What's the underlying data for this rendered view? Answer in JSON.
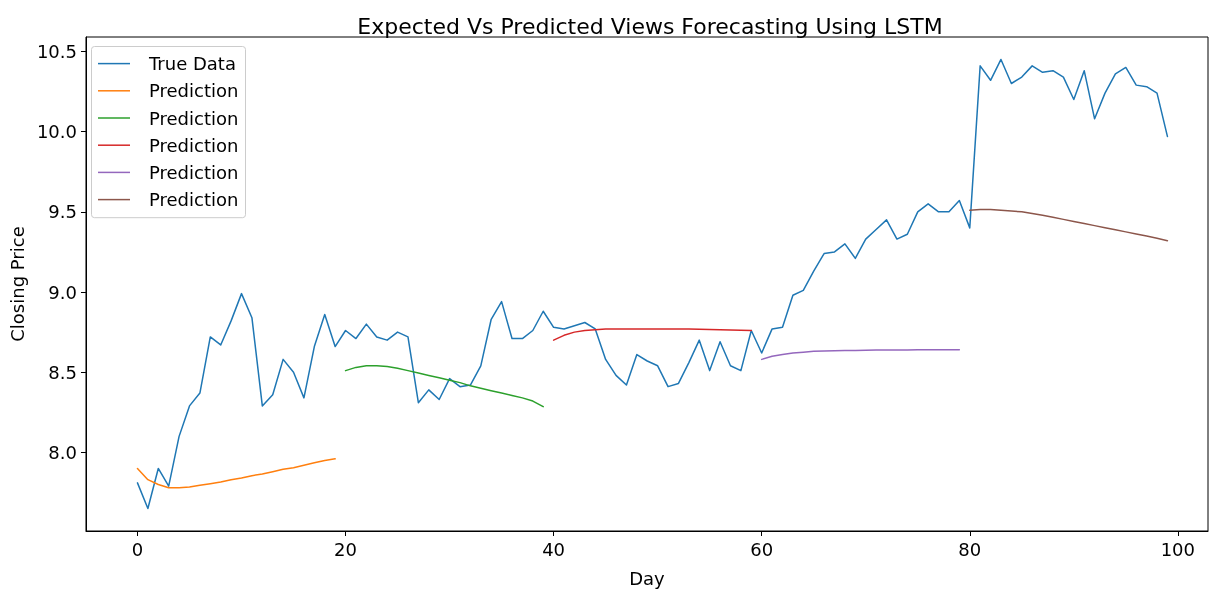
{
  "chart_data": {
    "type": "line",
    "title": "Expected Vs Predicted Views Forecasting Using LSTM",
    "xlabel": "Day",
    "ylabel": "Closing Price",
    "xlim": [
      -4.95,
      102.9
    ],
    "ylim": [
      7.51,
      10.59
    ],
    "xticks": [
      0,
      20,
      40,
      60,
      80,
      100
    ],
    "yticks": [
      {
        "value": 8,
        "label": "8.0"
      },
      {
        "value": 8.5,
        "label": "8.5"
      },
      {
        "value": 9,
        "label": "9.0"
      },
      {
        "value": 9.5,
        "label": "9.5"
      },
      {
        "value": 10,
        "label": "10.0"
      },
      {
        "value": 10.5,
        "label": "10.5"
      }
    ],
    "grid": false,
    "legend": "top left",
    "marker": "none",
    "line_style": "solid",
    "series": [
      {
        "name": "True Data",
        "color": "#1f77b4",
        "x": [
          0,
          1,
          2,
          3,
          4,
          5,
          6,
          7,
          8,
          9,
          10,
          11,
          12,
          13,
          14,
          15,
          16,
          17,
          18,
          19,
          20,
          21,
          22,
          23,
          24,
          25,
          26,
          27,
          28,
          29,
          30,
          31,
          32,
          33,
          34,
          35,
          36,
          37,
          38,
          39,
          40,
          41,
          42,
          43,
          44,
          45,
          46,
          47,
          48,
          49,
          50,
          51,
          52,
          53,
          54,
          55,
          56,
          57,
          58,
          59,
          60,
          61,
          62,
          63,
          64,
          65,
          66,
          67,
          68,
          69,
          70,
          71,
          72,
          73,
          74,
          75,
          76,
          77,
          78,
          79,
          80,
          81,
          82,
          83,
          84,
          85,
          86,
          87,
          88,
          89,
          90,
          91,
          92,
          93,
          94,
          95,
          96,
          97,
          98,
          99
        ],
        "values": [
          7.81,
          7.65,
          7.9,
          7.79,
          8.1,
          8.29,
          8.37,
          8.72,
          8.67,
          8.82,
          8.99,
          8.84,
          8.29,
          8.36,
          8.58,
          8.5,
          8.34,
          8.66,
          8.86,
          8.66,
          8.76,
          8.71,
          8.8,
          8.72,
          8.7,
          8.75,
          8.72,
          8.31,
          8.39,
          8.33,
          8.46,
          8.41,
          8.42,
          8.54,
          8.83,
          8.94,
          8.71,
          8.71,
          8.76,
          8.88,
          8.78,
          8.77,
          8.79,
          8.81,
          8.77,
          8.58,
          8.48,
          8.42,
          8.61,
          8.57,
          8.54,
          8.41,
          8.43,
          8.56,
          8.7,
          8.51,
          8.69,
          8.54,
          8.51,
          8.76,
          8.62,
          8.77,
          8.78,
          8.98,
          9.01,
          9.13,
          9.24,
          9.25,
          9.3,
          9.21,
          9.33,
          9.39,
          9.45,
          9.33,
          9.36,
          9.5,
          9.55,
          9.5,
          9.5,
          9.57,
          9.4,
          10.41,
          10.32,
          10.45,
          10.3,
          10.34,
          10.41,
          10.37,
          10.38,
          10.34,
          10.2,
          10.38,
          10.08,
          10.24,
          10.36,
          10.4,
          10.29,
          10.28,
          10.24,
          9.97
        ]
      },
      {
        "name": "Prediction",
        "color": "#ff7f0e",
        "x": [
          0,
          1,
          2,
          3,
          4,
          5,
          6,
          7,
          8,
          9,
          10,
          11,
          12,
          13,
          14,
          15,
          16,
          17,
          18,
          19
        ],
        "values": [
          7.9,
          7.83,
          7.8,
          7.78,
          7.78,
          7.785,
          7.795,
          7.805,
          7.815,
          7.83,
          7.84,
          7.855,
          7.865,
          7.88,
          7.895,
          7.905,
          7.92,
          7.935,
          7.95,
          7.96
        ]
      },
      {
        "name": "Prediction",
        "color": "#2ca02c",
        "x": [
          20,
          21,
          22,
          23,
          24,
          25,
          26,
          27,
          28,
          29,
          30,
          31,
          32,
          33,
          34,
          35,
          36,
          37,
          38,
          39
        ],
        "values": [
          8.51,
          8.53,
          8.54,
          8.54,
          8.535,
          8.525,
          8.51,
          8.495,
          8.48,
          8.465,
          8.45,
          8.435,
          8.415,
          8.4,
          8.385,
          8.37,
          8.355,
          8.34,
          8.32,
          8.285
        ]
      },
      {
        "name": "Prediction",
        "color": "#d62728",
        "x": [
          40,
          41,
          42,
          43,
          44,
          45,
          46,
          47,
          48,
          49,
          50,
          51,
          52,
          53,
          54,
          55,
          56,
          57,
          58,
          59
        ],
        "values": [
          8.7,
          8.73,
          8.75,
          8.76,
          8.765,
          8.77,
          8.77,
          8.77,
          8.77,
          8.77,
          8.77,
          8.77,
          8.77,
          8.77,
          8.768,
          8.766,
          8.765,
          8.763,
          8.762,
          8.76
        ]
      },
      {
        "name": "Prediction",
        "color": "#9467bd",
        "x": [
          60,
          61,
          62,
          63,
          64,
          65,
          66,
          67,
          68,
          69,
          70,
          71,
          72,
          73,
          74,
          75,
          76,
          77,
          78,
          79
        ],
        "values": [
          8.58,
          8.6,
          8.61,
          8.62,
          8.625,
          8.63,
          8.632,
          8.634,
          8.635,
          8.636,
          8.637,
          8.638,
          8.638,
          8.639,
          8.639,
          8.64,
          8.64,
          8.64,
          8.64,
          8.64
        ]
      },
      {
        "name": "Prediction",
        "color": "#8c564b",
        "x": [
          80,
          81,
          82,
          83,
          84,
          85,
          86,
          87,
          88,
          89,
          90,
          91,
          92,
          93,
          94,
          95,
          96,
          97,
          98,
          99
        ],
        "values": [
          9.51,
          9.515,
          9.515,
          9.51,
          9.505,
          9.5,
          9.49,
          9.478,
          9.466,
          9.453,
          9.44,
          9.427,
          9.414,
          9.401,
          9.388,
          9.375,
          9.362,
          9.349,
          9.335,
          9.32
        ]
      }
    ]
  }
}
